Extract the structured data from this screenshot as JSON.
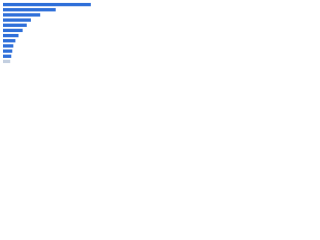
{
  "chart_data": {
    "type": "bar",
    "orientation": "horizontal",
    "categories": [
      null,
      null,
      null,
      null,
      null,
      null,
      null,
      null,
      null,
      null,
      null,
      null
    ],
    "values": [
      85,
      51,
      36,
      27,
      23,
      19,
      15,
      12,
      10,
      9,
      8,
      7
    ],
    "colors": [
      "#2e6fd9",
      "#2e6fd9",
      "#2e6fd9",
      "#2e6fd9",
      "#2e6fd9",
      "#2e6fd9",
      "#2e6fd9",
      "#2e6fd9",
      "#2e6fd9",
      "#2e6fd9",
      "#2e6fd9",
      "#c3cfe0"
    ],
    "xlim": [
      0,
      90
    ]
  }
}
